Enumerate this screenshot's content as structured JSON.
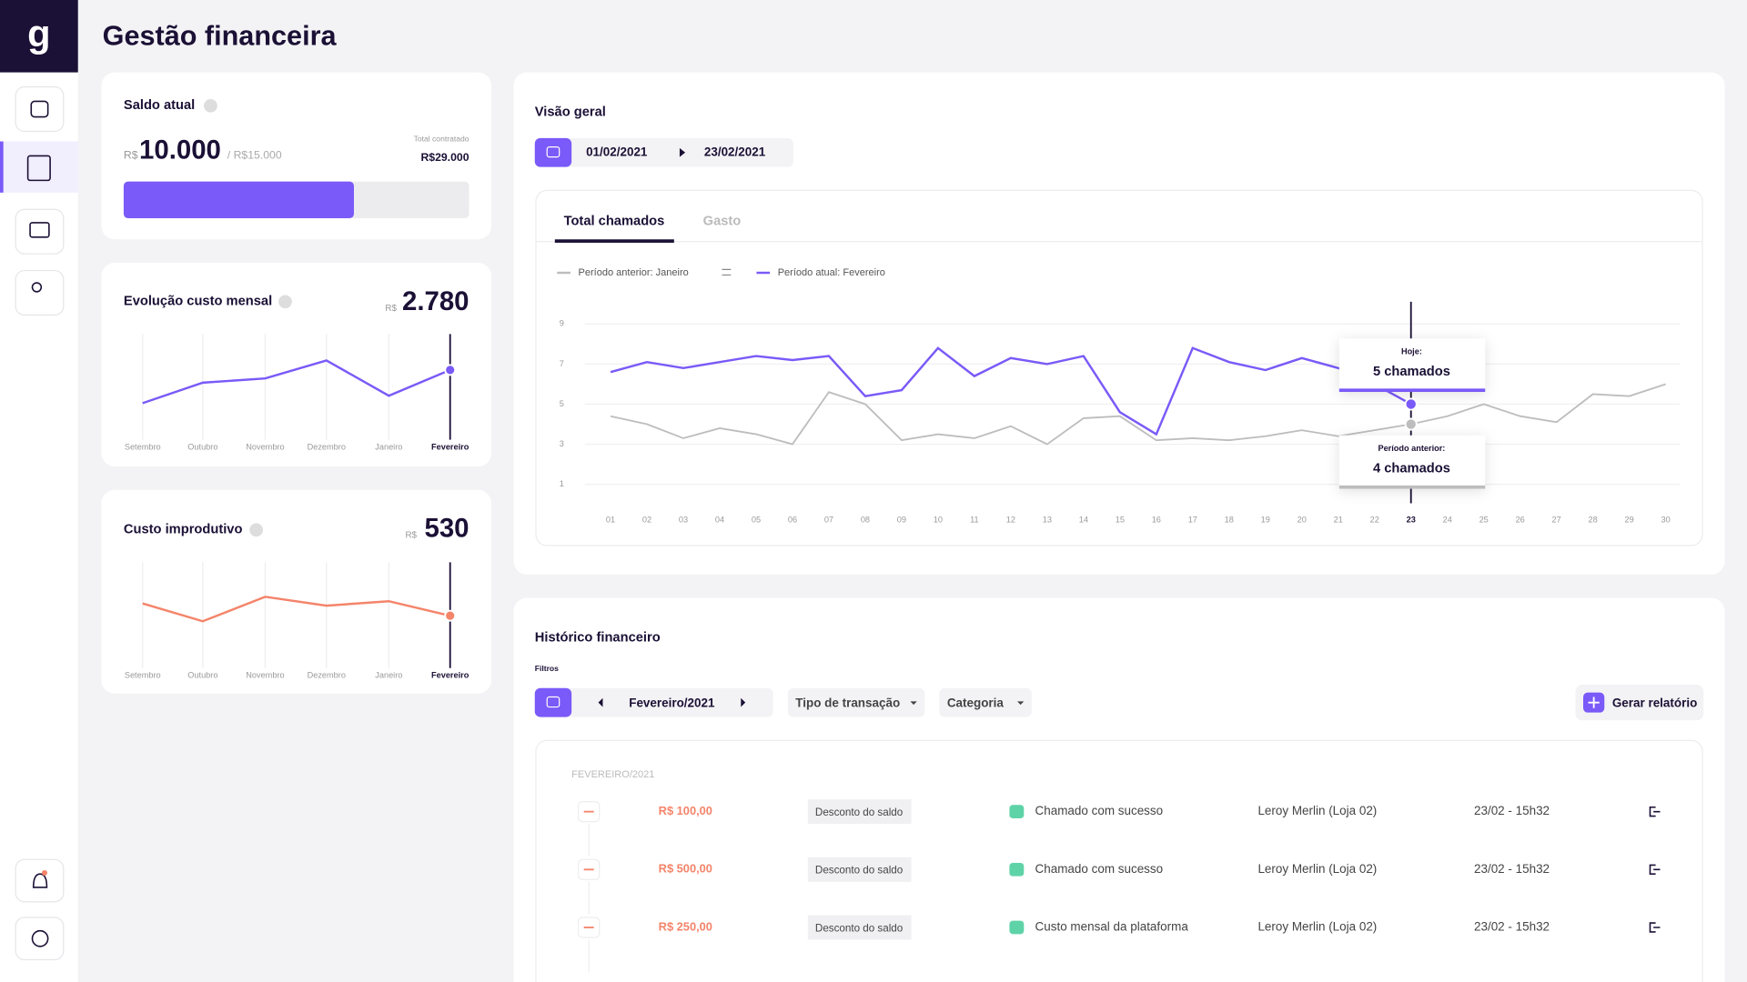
{
  "header": {
    "title": "Gestão financeira"
  },
  "saldo": {
    "title": "Saldo atual",
    "currency": "R$",
    "value": "10.000",
    "limit": "/ R$15.000",
    "contracted_label": "Total contratado",
    "contracted": "R$29.000",
    "progress": {
      "value": 10000,
      "max": 15000
    }
  },
  "evolucao": {
    "title": "Evolução custo mensal",
    "currency": "R$",
    "value": "2.780",
    "chart": {
      "type": "line",
      "categories": [
        "Setembro",
        "Outubro",
        "Novembro",
        "Dezembro",
        "Janeiro",
        "Fevereiro"
      ],
      "values": [
        1840,
        2420,
        2540,
        3050,
        2050,
        2780
      ],
      "ylim": [
        800,
        3800
      ],
      "color": "#7a5af8"
    }
  },
  "custo": {
    "title": "Custo improdutivo",
    "currency": "R$",
    "value": "530",
    "chart": {
      "type": "line",
      "categories": [
        "Setembro",
        "Outubro",
        "Novembro",
        "Dezembro",
        "Janeiro",
        "Fevereiro"
      ],
      "values": [
        640,
        480,
        700,
        620,
        660,
        530
      ],
      "ylim": [
        60,
        1010
      ],
      "color": "#f4846a"
    }
  },
  "visao": {
    "title": "Visão geral",
    "date_start": "01/02/2021",
    "date_end": "23/02/2021",
    "tabs": [
      "Total chamados",
      "Gasto"
    ],
    "chart_data": {
      "type": "line",
      "x": [
        "01",
        "02",
        "03",
        "04",
        "05",
        "06",
        "07",
        "08",
        "09",
        "10",
        "11",
        "12",
        "13",
        "14",
        "15",
        "16",
        "17",
        "18",
        "19",
        "20",
        "21",
        "22",
        "23",
        "24",
        "25",
        "26",
        "27",
        "28",
        "29",
        "30"
      ],
      "ylim": [
        0,
        10
      ],
      "yticks": [
        1,
        3,
        5,
        7,
        9
      ],
      "grid": true,
      "series": [
        {
          "name": "Período anterior: Janeiro",
          "color": "#bdbdbd",
          "values": [
            4.4,
            4.0,
            3.3,
            3.8,
            3.5,
            3.0,
            5.6,
            5.0,
            3.2,
            3.5,
            3.3,
            3.9,
            3.0,
            4.3,
            4.4,
            3.2,
            3.3,
            3.2,
            3.4,
            3.7,
            3.4,
            3.7,
            4,
            4.4,
            5.0,
            4.4,
            4.1,
            5.5,
            5.4,
            6.0
          ]
        },
        {
          "name": "Período atual: Fevereiro",
          "color": "#7a5af8",
          "values": [
            6.6,
            7.1,
            6.8,
            7.1,
            7.4,
            7.2,
            7.4,
            5.4,
            5.7,
            7.8,
            6.4,
            7.3,
            7.0,
            7.4,
            4.6,
            3.5,
            7.8,
            7.1,
            6.7,
            7.3,
            6.8,
            6.0,
            5,
            null,
            null,
            null,
            null,
            null,
            null,
            null
          ]
        }
      ],
      "tooltips": [
        {
          "label": "Hoje:",
          "text": "5 chamados"
        },
        {
          "label": "Período anterior:",
          "text": "4 chamados"
        }
      ]
    }
  },
  "historico": {
    "title": "Histórico financeiro",
    "filters_label": "Filtros",
    "month": "Fevereiro/2021",
    "dropdowns": [
      "Tipo de transação",
      "Categoria"
    ],
    "button": "Gerar relatório",
    "group": "FEVEREIRO/2021",
    "rows": [
      [
        "R$ 100,00",
        "Desconto do saldo",
        "Chamado com sucesso",
        "Leroy Merlin (Loja 02)",
        "23/02 - 15h32"
      ],
      [
        "R$ 500,00",
        "Desconto do saldo",
        "Chamado com sucesso",
        "Leroy Merlin (Loja 02)",
        "23/02 - 15h32"
      ],
      [
        "R$ 250,00",
        "Desconto do saldo",
        "Custo mensal da plataforma",
        "Leroy Merlin (Loja 02)",
        "23/02 - 15h32"
      ]
    ]
  }
}
